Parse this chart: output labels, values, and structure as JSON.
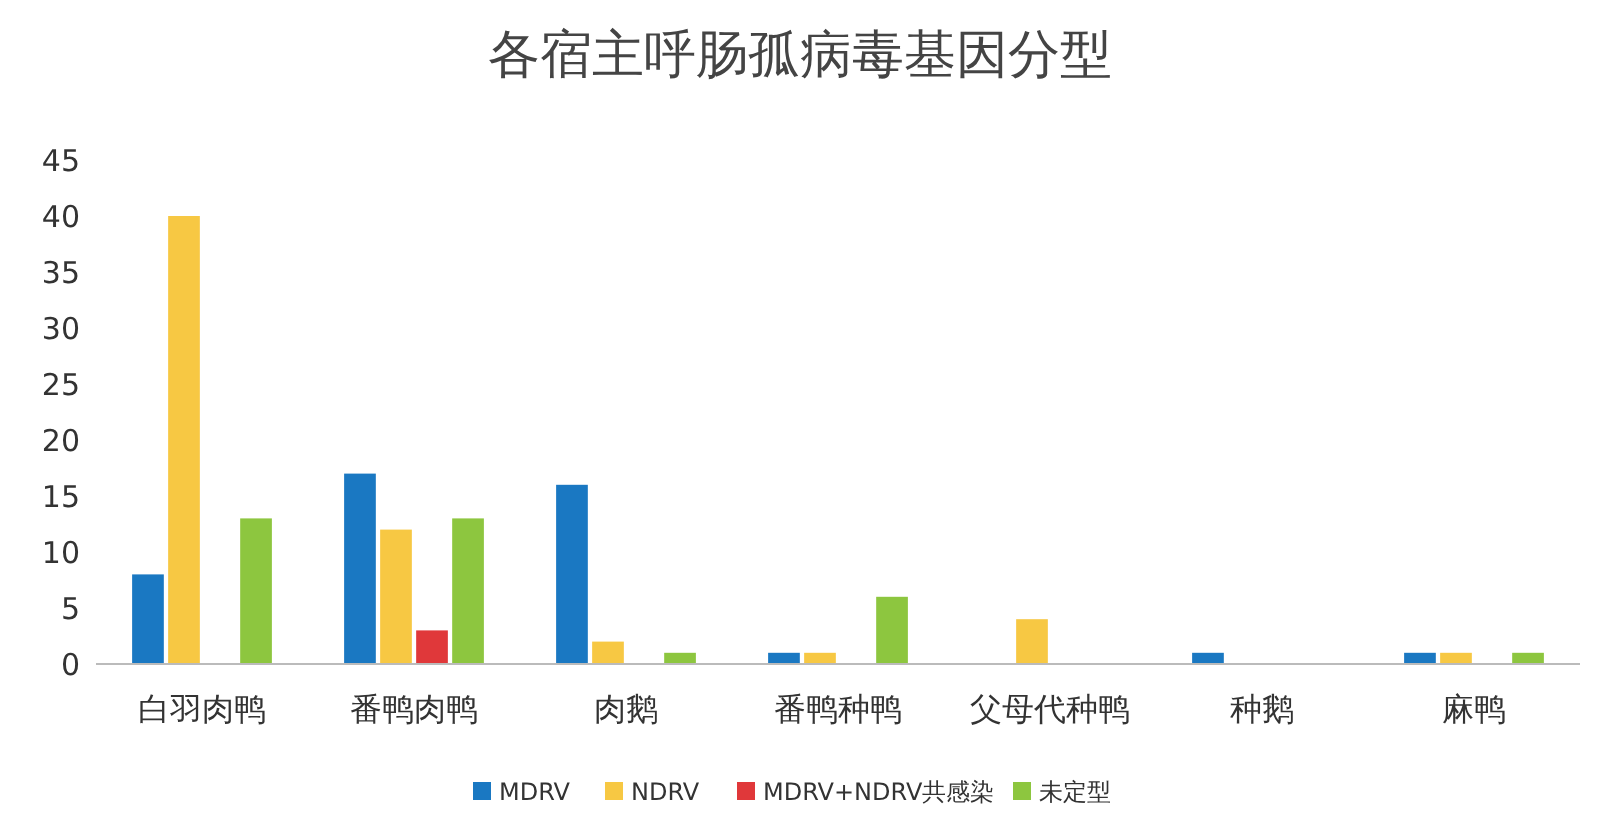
{
  "chart_data": {
    "type": "bar",
    "title": "各宿主呼肠孤病毒基因分型",
    "categories": [
      "白羽肉鸭",
      "番鸭肉鸭",
      "肉鹅",
      "番鸭种鸭",
      "父母代种鸭",
      "种鹅",
      "麻鸭"
    ],
    "series": [
      {
        "name": "MDRV",
        "color": "#1a78c2",
        "values": [
          8,
          17,
          16,
          1,
          null,
          1,
          1
        ]
      },
      {
        "name": "NDRV",
        "color": "#f7c843",
        "values": [
          40,
          12,
          2,
          1,
          4,
          null,
          1
        ]
      },
      {
        "name": "MDRV+NDRV共感染",
        "color": "#e0383a",
        "values": [
          null,
          3,
          null,
          null,
          null,
          null,
          null
        ]
      },
      {
        "name": "未定型",
        "color": "#8dc63f",
        "values": [
          13,
          13,
          1,
          6,
          null,
          null,
          1
        ]
      }
    ],
    "ylim": [
      0,
      45
    ],
    "yticks": [
      0,
      5,
      10,
      15,
      20,
      25,
      30,
      35,
      40,
      45
    ],
    "grid": false,
    "legend": "bottom"
  }
}
